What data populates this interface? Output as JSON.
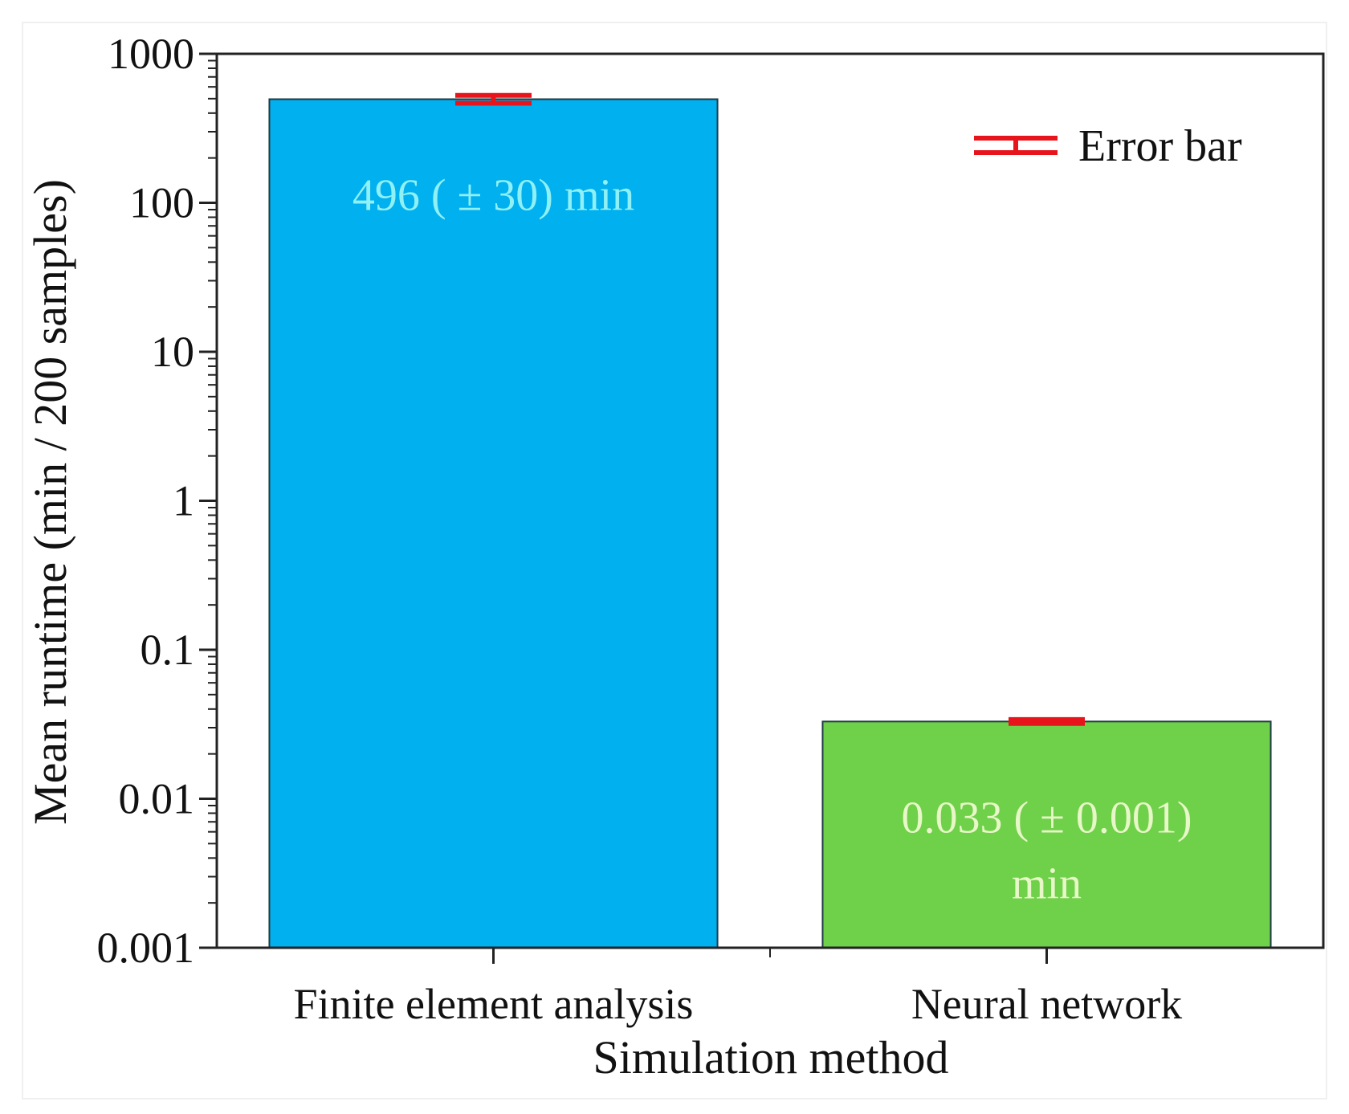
{
  "chart_data": {
    "type": "bar",
    "title": "",
    "xlabel": "Simulation method",
    "ylabel": "Mean runtime (min / 200 samples)",
    "yscale": "log",
    "ylim": [
      0.001,
      1000
    ],
    "y_ticks": [
      "0.001",
      "0.01",
      "0.1",
      "1",
      "10",
      "100",
      "1000"
    ],
    "categories": [
      "Finite element analysis",
      "Neural network"
    ],
    "values": [
      496,
      0.033
    ],
    "errors": [
      30,
      0.001
    ],
    "bar_colors": [
      "#00b0ef",
      "#6fd04a"
    ],
    "bar_labels": [
      [
        "496 ( ± 30) min"
      ],
      [
        "0.033 ( ± 0.001)",
        "min"
      ]
    ],
    "bar_label_colors": [
      "#8ff0f5",
      "#e8f7c8"
    ],
    "error_bar_color": "#e8141c",
    "legend": {
      "position": "top-right",
      "entries": [
        "Error bar"
      ]
    },
    "grid": false
  }
}
